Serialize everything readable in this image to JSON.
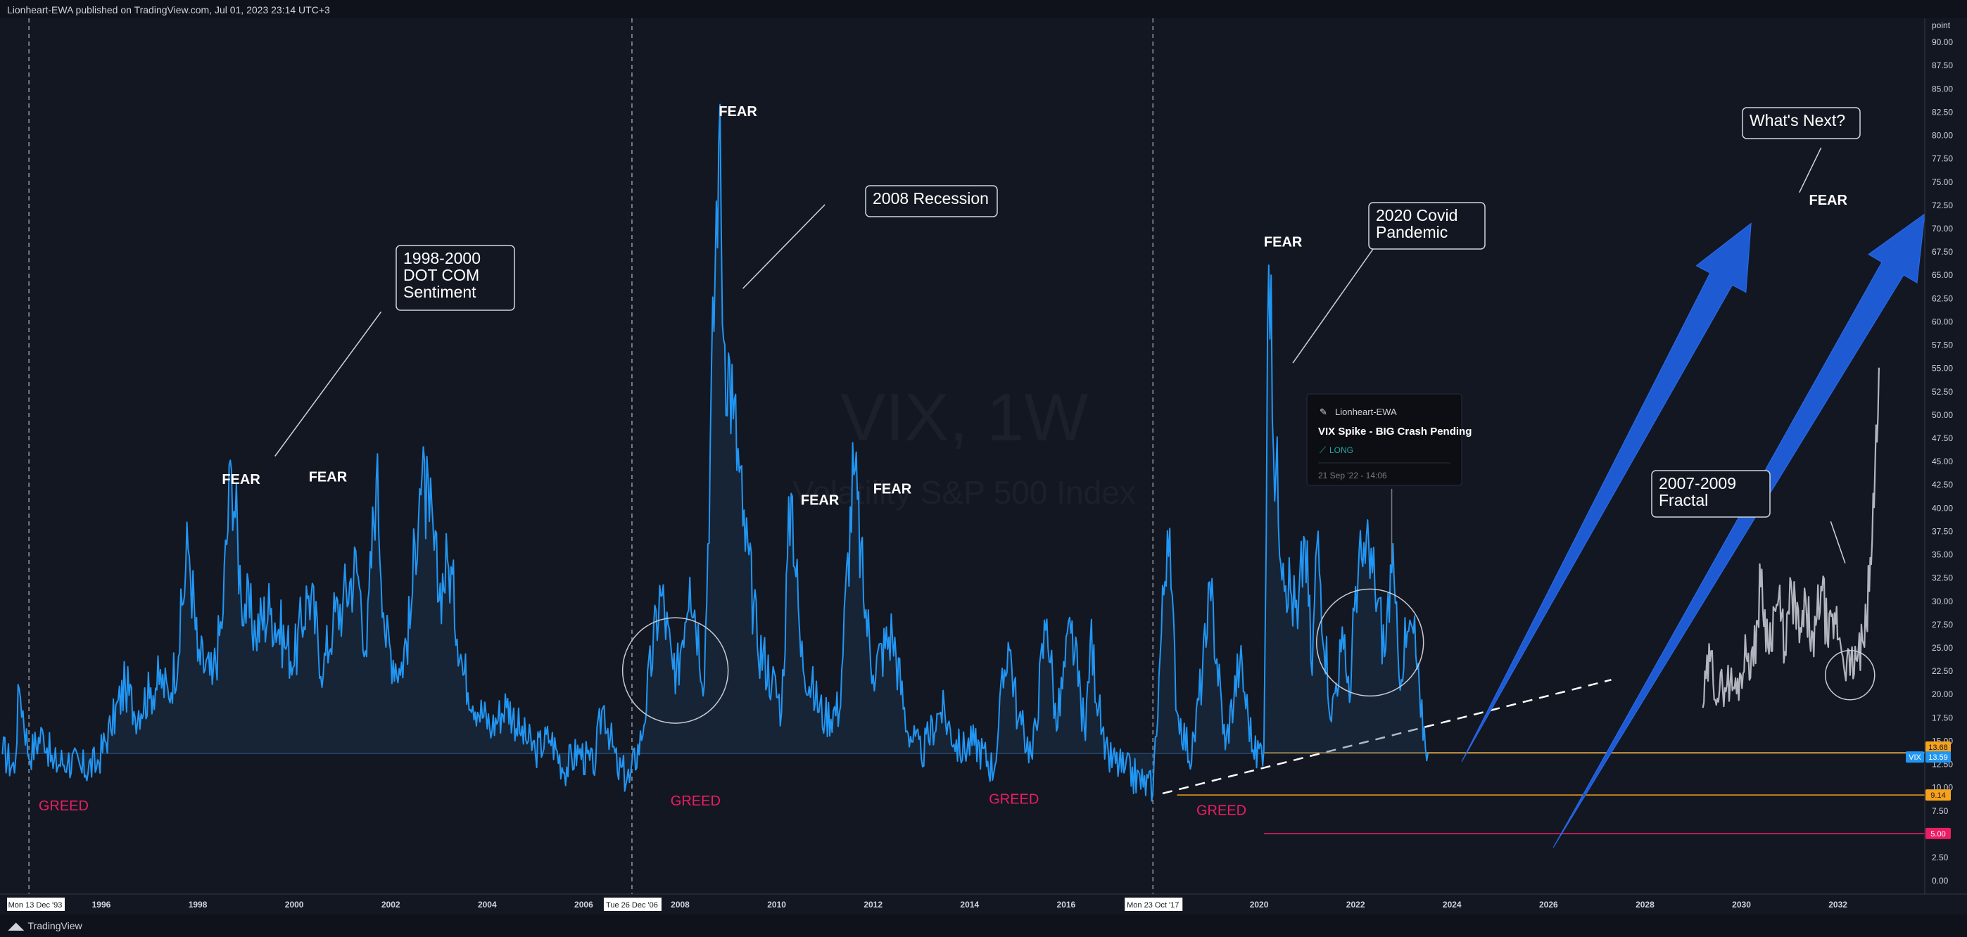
{
  "header": {
    "publish_text": "Lionheart-EWA published on TradingView.com, Jul 01, 2023 23:14 UTC+3"
  },
  "footer": {
    "brand": "TradingView",
    "logo": "tv-logo-icon"
  },
  "colors": {
    "background": "#131722",
    "series": "#2196f3",
    "fractal": "#b2b5be",
    "greed": "#e91e63",
    "fear": "#ffffff",
    "arrow": "#1e5bd3",
    "orange_line": "#f7a21b",
    "red_line": "#e91e63"
  },
  "watermark": {
    "symbol": "VIX, 1W",
    "description": "Volatility S&P 500 Index"
  },
  "chart_data": {
    "type": "line",
    "title": "VIX, 1W",
    "subtitle": "Volatility S&P 500 Index",
    "x_range": [
      1993.9,
      2033.8
    ],
    "ylim": [
      -1.5,
      92.5
    ],
    "y_unit": "point",
    "y_ticks": [
      "0.00",
      "2.50",
      "5.00",
      "7.50",
      "10.00",
      "12.50",
      "15.00",
      "17.50",
      "20.00",
      "22.50",
      "25.00",
      "27.50",
      "30.00",
      "32.50",
      "35.00",
      "37.50",
      "40.00",
      "42.50",
      "45.00",
      "47.50",
      "50.00",
      "52.50",
      "55.00",
      "57.50",
      "60.00",
      "62.50",
      "65.00",
      "67.50",
      "70.00",
      "72.50",
      "75.00",
      "77.50",
      "80.00",
      "82.50",
      "85.00",
      "87.50",
      "90.00"
    ],
    "x_ticks": [
      "1996",
      "1998",
      "2000",
      "2002",
      "2004",
      "2006",
      "2008",
      "2010",
      "2012",
      "2014",
      "2016",
      "2018",
      "2020",
      "2022",
      "2024",
      "2026",
      "2028",
      "2030",
      "2032"
    ],
    "series": [
      {
        "type": "vix",
        "points": [
          [
            1993.95,
            13.5
          ],
          [
            1994.2,
            11.5
          ],
          [
            1994.3,
            20.5
          ],
          [
            1994.5,
            13.0
          ],
          [
            1994.8,
            15.5
          ],
          [
            1995.0,
            12.0
          ],
          [
            1995.3,
            12.5
          ],
          [
            1995.6,
            11.5
          ],
          [
            1995.9,
            12.0
          ],
          [
            1996.2,
            16.0
          ],
          [
            1996.5,
            20.5
          ],
          [
            1996.7,
            17.5
          ],
          [
            1997.0,
            19.5
          ],
          [
            1997.2,
            21.0
          ],
          [
            1997.4,
            19.5
          ],
          [
            1997.6,
            24.0
          ],
          [
            1997.8,
            35.5
          ],
          [
            1998.0,
            23.5
          ],
          [
            1998.3,
            21.0
          ],
          [
            1998.5,
            27.0
          ],
          [
            1998.7,
            44.0
          ],
          [
            1998.9,
            30.0
          ],
          [
            1999.2,
            26.0
          ],
          [
            1999.5,
            28.5
          ],
          [
            1999.8,
            25.0
          ],
          [
            2000.0,
            23.0
          ],
          [
            2000.3,
            30.5
          ],
          [
            2000.6,
            22.0
          ],
          [
            2000.8,
            27.0
          ],
          [
            2001.0,
            29.0
          ],
          [
            2001.3,
            33.0
          ],
          [
            2001.5,
            24.0
          ],
          [
            2001.7,
            43.0
          ],
          [
            2001.9,
            25.0
          ],
          [
            2002.2,
            22.0
          ],
          [
            2002.4,
            27.0
          ],
          [
            2002.6,
            42.0
          ],
          [
            2002.8,
            38.5
          ],
          [
            2003.0,
            30.0
          ],
          [
            2003.2,
            33.5
          ],
          [
            2003.5,
            22.0
          ],
          [
            2003.8,
            18.0
          ],
          [
            2004.1,
            16.0
          ],
          [
            2004.4,
            18.5
          ],
          [
            2004.7,
            15.5
          ],
          [
            2005.0,
            13.5
          ],
          [
            2005.3,
            15.0
          ],
          [
            2005.6,
            11.5
          ],
          [
            2005.9,
            13.5
          ],
          [
            2006.2,
            11.5
          ],
          [
            2006.4,
            18.5
          ],
          [
            2006.7,
            11.5
          ],
          [
            2006.95,
            10.5
          ],
          [
            2007.2,
            15.0
          ],
          [
            2007.6,
            30.5
          ],
          [
            2007.9,
            20.0
          ],
          [
            2008.2,
            32.5
          ],
          [
            2008.5,
            21.0
          ],
          [
            2008.8,
            79.0
          ],
          [
            2008.9,
            58.0
          ],
          [
            2009.1,
            49.5
          ],
          [
            2009.3,
            38.0
          ],
          [
            2009.6,
            25.0
          ],
          [
            2009.9,
            21.0
          ],
          [
            2010.1,
            18.0
          ],
          [
            2010.3,
            41.5
          ],
          [
            2010.5,
            24.0
          ],
          [
            2010.8,
            19.0
          ],
          [
            2011.0,
            17.0
          ],
          [
            2011.3,
            18.0
          ],
          [
            2011.6,
            43.5
          ],
          [
            2011.8,
            30.0
          ],
          [
            2012.0,
            22.0
          ],
          [
            2012.4,
            26.0
          ],
          [
            2012.7,
            16.0
          ],
          [
            2013.0,
            13.0
          ],
          [
            2013.4,
            18.0
          ],
          [
            2013.8,
            13.5
          ],
          [
            2014.1,
            14.5
          ],
          [
            2014.5,
            11.5
          ],
          [
            2014.8,
            25.5
          ],
          [
            2015.0,
            17.0
          ],
          [
            2015.3,
            13.0
          ],
          [
            2015.6,
            28.0
          ],
          [
            2015.8,
            16.0
          ],
          [
            2016.1,
            26.5
          ],
          [
            2016.4,
            15.0
          ],
          [
            2016.5,
            25.5
          ],
          [
            2016.8,
            13.0
          ],
          [
            2017.2,
            11.5
          ],
          [
            2017.6,
            10.0
          ],
          [
            2017.8,
            9.5
          ],
          [
            2018.1,
            37.5
          ],
          [
            2018.3,
            18.0
          ],
          [
            2018.6,
            12.5
          ],
          [
            2018.9,
            25.0
          ],
          [
            2019.0,
            30.0
          ],
          [
            2019.3,
            14.0
          ],
          [
            2019.6,
            23.0
          ],
          [
            2019.9,
            13.0
          ],
          [
            2020.1,
            14.0
          ],
          [
            2020.2,
            66.0
          ],
          [
            2020.3,
            46.0
          ],
          [
            2020.5,
            34.0
          ],
          [
            2020.8,
            27.0
          ],
          [
            2020.95,
            36.5
          ],
          [
            2021.1,
            22.0
          ],
          [
            2021.2,
            36.0
          ],
          [
            2021.5,
            17.0
          ],
          [
            2021.7,
            24.5
          ],
          [
            2021.9,
            20.0
          ],
          [
            2022.0,
            31.5
          ],
          [
            2022.2,
            34.0
          ],
          [
            2022.4,
            31.5
          ],
          [
            2022.6,
            24.0
          ],
          [
            2022.75,
            33.0
          ],
          [
            2022.9,
            22.0
          ],
          [
            2023.05,
            25.0
          ],
          [
            2023.2,
            26.5
          ],
          [
            2023.35,
            17.5
          ],
          [
            2023.5,
            13.6
          ]
        ]
      },
      {
        "type": "fractal",
        "points": [
          [
            2029.2,
            18.5
          ],
          [
            2029.35,
            23.5
          ],
          [
            2029.5,
            19.5
          ],
          [
            2029.7,
            21.0
          ],
          [
            2029.9,
            20.0
          ],
          [
            2030.1,
            24.0
          ],
          [
            2030.25,
            23.0
          ],
          [
            2030.4,
            31.5
          ],
          [
            2030.55,
            25.0
          ],
          [
            2030.75,
            29.5
          ],
          [
            2030.9,
            24.5
          ],
          [
            2031.05,
            30.5
          ],
          [
            2031.2,
            25.5
          ],
          [
            2031.35,
            28.5
          ],
          [
            2031.5,
            24.0
          ],
          [
            2031.65,
            31.5
          ],
          [
            2031.8,
            25.0
          ],
          [
            2031.95,
            27.5
          ],
          [
            2032.1,
            24.0
          ],
          [
            2032.25,
            22.0
          ],
          [
            2032.4,
            23.5
          ],
          [
            2032.55,
            25.0
          ],
          [
            2032.65,
            31.0
          ],
          [
            2032.75,
            40.0
          ],
          [
            2032.85,
            55.0
          ]
        ]
      }
    ],
    "lines": [
      {
        "price": 13.59,
        "label": "VIX 13.59",
        "color": "#2196f3"
      },
      {
        "price": 13.68,
        "label": "13.68",
        "color": "#f7a21b"
      },
      {
        "price": 9.14,
        "label": "9.14",
        "color": "#f7a21b"
      },
      {
        "price": 5.0,
        "label": "5.00",
        "color": "#e91e63"
      }
    ],
    "annotations": [
      {
        "text": "FEAR",
        "x": 1998.5,
        "y": 42.5
      },
      {
        "text": "FEAR",
        "x": 2000.3,
        "y": 42.8
      },
      {
        "text": "FEAR",
        "x": 2008.8,
        "y": 82.0
      },
      {
        "text": "FEAR",
        "x": 2010.5,
        "y": 40.3
      },
      {
        "text": "FEAR",
        "x": 2012.0,
        "y": 41.5
      },
      {
        "text": "FEAR",
        "x": 2020.1,
        "y": 68.0
      },
      {
        "text": "FEAR",
        "x": 2031.4,
        "y": 72.5
      },
      {
        "text": "GREED",
        "x": 1994.7,
        "y": 7.5
      },
      {
        "text": "GREED",
        "x": 2007.8,
        "y": 8.0
      },
      {
        "text": "GREED",
        "x": 2014.4,
        "y": 8.2
      },
      {
        "text": "GREED",
        "x": 2018.7,
        "y": 7.0
      }
    ],
    "callouts": [
      {
        "lines": [
          "1998-2000",
          "DOT COM",
          "Sentiment"
        ]
      },
      {
        "lines": [
          "2008 Recession"
        ]
      },
      {
        "lines": [
          "2020 Covid",
          "Pandemic"
        ]
      },
      {
        "lines": [
          "What's Next?"
        ]
      },
      {
        "lines": [
          "2007-2009",
          "Fractal"
        ]
      }
    ],
    "idea_card": {
      "author": "Lionheart-EWA",
      "title": "VIX Spike - BIG Crash Pending",
      "tag": "LONG",
      "date": "21 Sep '22 - 14:06"
    },
    "date_markers": [
      "Mon 13 Dec '93",
      "Tue 26 Dec '06",
      "Mon 23 Oct '17"
    ]
  }
}
